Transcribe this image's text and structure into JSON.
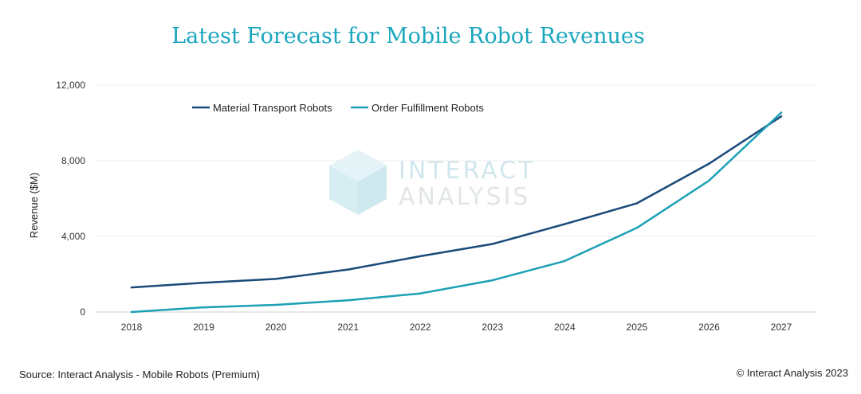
{
  "title": "Latest Forecast for Mobile Robot Revenues",
  "watermark": {
    "line1": "INTERACT",
    "line2": "ANALYSIS"
  },
  "source": "Source: Interact Analysis - Mobile Robots (Premium)",
  "copyright": "© Interact Analysis 2023",
  "chart_data": {
    "type": "line",
    "title": "Latest Forecast for Mobile Robot Revenues",
    "ylabel": "Revenue ($M)",
    "xlabel": "",
    "ylim": [
      0,
      12000
    ],
    "yticks": [
      0,
      4000,
      8000,
      12000
    ],
    "ytick_labels": [
      "0",
      "4,000",
      "8,000",
      "12,000"
    ],
    "grid": true,
    "legend_position": "top-left",
    "x": [
      "2018",
      "2019",
      "2020",
      "2021",
      "2022",
      "2023",
      "2024",
      "2025",
      "2026",
      "2027"
    ],
    "series": [
      {
        "name": "Material Transport Robots",
        "color": "#1a4a7a",
        "values": [
          1300,
          1550,
          1750,
          2250,
          2950,
          3600,
          4650,
          5750,
          7850,
          10350
        ]
      },
      {
        "name": "Order Fulfillment Robots",
        "color": "#1ba0b5",
        "values": [
          0,
          250,
          380,
          620,
          980,
          1680,
          2700,
          4450,
          6950,
          10550
        ]
      }
    ]
  }
}
